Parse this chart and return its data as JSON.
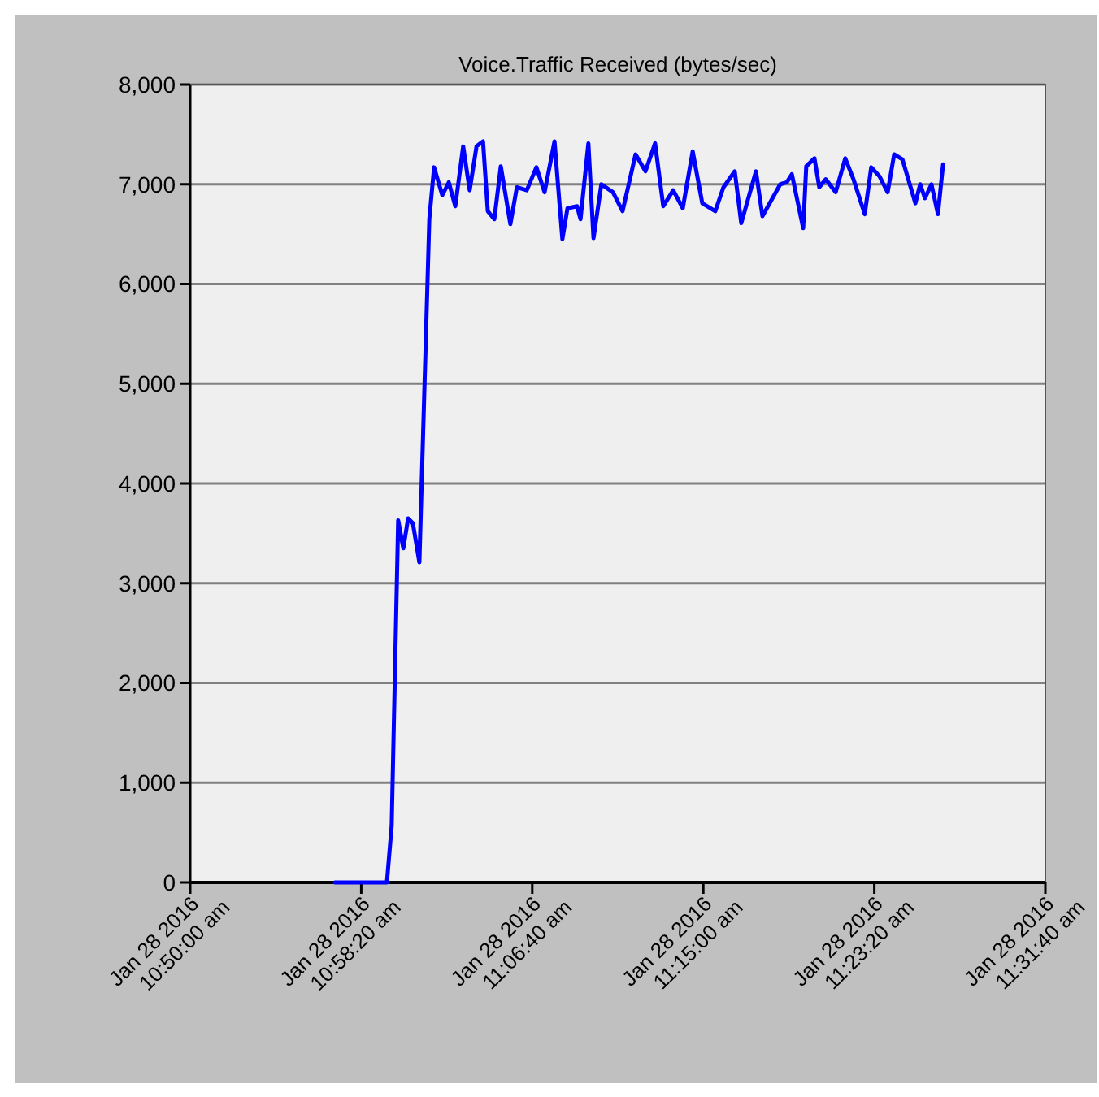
{
  "chart_data": {
    "type": "line",
    "title": "Voice.Traffic Received (bytes/sec)",
    "x": [
      "2016-01-28T10:57:03",
      "2016-01-28T10:59:35",
      "2016-01-28T10:59:49",
      "2016-01-28T11:00:08",
      "2016-01-28T11:00:23",
      "2016-01-28T11:00:37",
      "2016-01-28T11:00:51",
      "2016-01-28T11:01:10",
      "2016-01-28T11:01:39",
      "2016-01-28T11:01:53",
      "2016-01-28T11:02:17",
      "2016-01-28T11:02:36",
      "2016-01-28T11:02:55",
      "2016-01-28T11:03:18",
      "2016-01-28T11:03:37",
      "2016-01-28T11:03:57",
      "2016-01-28T11:04:16",
      "2016-01-28T11:04:30",
      "2016-01-28T11:04:49",
      "2016-01-28T11:05:08",
      "2016-01-28T11:05:36",
      "2016-01-28T11:05:55",
      "2016-01-28T11:06:24",
      "2016-01-28T11:06:52",
      "2016-01-28T11:07:16",
      "2016-01-28T11:07:45",
      "2016-01-28T11:08:08",
      "2016-01-28T11:08:23",
      "2016-01-28T11:08:51",
      "2016-01-28T11:09:01",
      "2016-01-28T11:09:24",
      "2016-01-28T11:09:39",
      "2016-01-28T11:10:02",
      "2016-01-28T11:10:36",
      "2016-01-28T11:11:04",
      "2016-01-28T11:11:42",
      "2016-01-28T11:12:11",
      "2016-01-28T11:12:39",
      "2016-01-28T11:13:03",
      "2016-01-28T11:13:32",
      "2016-01-28T11:14:00",
      "2016-01-28T11:14:29",
      "2016-01-28T11:14:57",
      "2016-01-28T11:15:35",
      "2016-01-28T11:15:59",
      "2016-01-28T11:16:32",
      "2016-01-28T11:16:51",
      "2016-01-28T11:17:10",
      "2016-01-28T11:17:34",
      "2016-01-28T11:17:53",
      "2016-01-28T11:18:45",
      "2016-01-28T11:19:04",
      "2016-01-28T11:19:19",
      "2016-01-28T11:19:52",
      "2016-01-28T11:20:01",
      "2016-01-28T11:20:25",
      "2016-01-28T11:20:39",
      "2016-01-28T11:20:58",
      "2016-01-28T11:21:27",
      "2016-01-28T11:21:55",
      "2016-01-28T11:22:19",
      "2016-01-28T11:22:52",
      "2016-01-28T11:23:11",
      "2016-01-28T11:23:35",
      "2016-01-28T11:23:59",
      "2016-01-28T11:24:18",
      "2016-01-28T11:24:42",
      "2016-01-28T11:25:20",
      "2016-01-28T11:25:34",
      "2016-01-28T11:25:48",
      "2016-01-28T11:26:07",
      "2016-01-28T11:26:26",
      "2016-01-28T11:26:41"
    ],
    "series": [
      {
        "color": "#0000ff",
        "values": [
          0,
          0,
          570,
          3630,
          3350,
          3650,
          3600,
          3210,
          6650,
          7170,
          6890,
          7020,
          6780,
          7380,
          6940,
          7380,
          7430,
          6730,
          6650,
          7180,
          6600,
          6970,
          6940,
          7170,
          6920,
          7430,
          6450,
          6760,
          6780,
          6650,
          7410,
          6460,
          7000,
          6920,
          6730,
          7300,
          7130,
          7410,
          6780,
          6940,
          6760,
          7330,
          6810,
          6730,
          6970,
          7130,
          6610,
          6840,
          7130,
          6680,
          7000,
          7020,
          7100,
          6560,
          7180,
          7260,
          6970,
          7050,
          6920,
          7260,
          7050,
          6700,
          7170,
          7080,
          6920,
          7300,
          7250,
          6810,
          7000,
          6860,
          7000,
          6700,
          7200
        ]
      }
    ],
    "xlim": [
      "2016-01-28T10:50:00",
      "2016-01-28T11:31:40"
    ],
    "xticks": [
      {
        "value": "2016-01-28T10:50:00",
        "label": "Jan 28 2016\n10:50:00 am"
      },
      {
        "value": "2016-01-28T10:58:20",
        "label": "Jan 28 2016\n10:58:20 am"
      },
      {
        "value": "2016-01-28T11:06:40",
        "label": "Jan 28 2016\n11:06:40 am"
      },
      {
        "value": "2016-01-28T11:15:00",
        "label": "Jan 28 2016\n11:15:00 am"
      },
      {
        "value": "2016-01-28T11:23:20",
        "label": "Jan 28 2016\n11:23:20 am"
      },
      {
        "value": "2016-01-28T11:31:40",
        "label": "Jan 28 2016\n11:31:40 am"
      }
    ],
    "ylim": [
      0,
      8000
    ],
    "yticks": [
      {
        "value": 0,
        "label": "0"
      },
      {
        "value": 1000,
        "label": "1,000"
      },
      {
        "value": 2000,
        "label": "2,000"
      },
      {
        "value": 3000,
        "label": "3,000"
      },
      {
        "value": 4000,
        "label": "4,000"
      },
      {
        "value": 5000,
        "label": "5,000"
      },
      {
        "value": 6000,
        "label": "6,000"
      },
      {
        "value": 7000,
        "label": "7,000"
      },
      {
        "value": 8000,
        "label": "8,000"
      }
    ],
    "grid": "y",
    "marker": "none",
    "line_style": "solid"
  }
}
